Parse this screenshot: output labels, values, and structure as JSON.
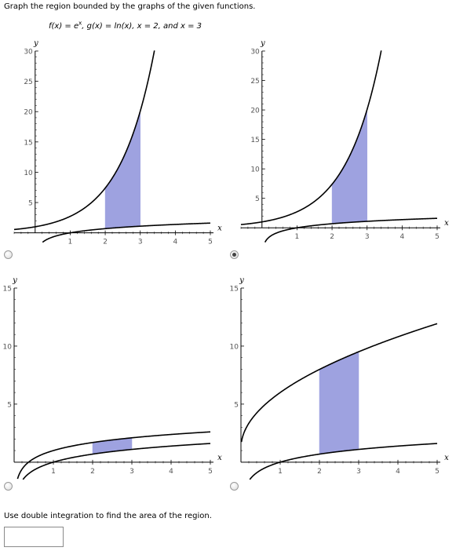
{
  "prompt": "Graph the region bounded by the graphs of the given functions.",
  "functions": {
    "f_label": "f(x) = e",
    "f_sup": "x",
    "rest": ", g(x) = ln(x), x = 2, and x = 3"
  },
  "instruction": "Use double integration to find the area of the region.",
  "answer": {
    "value": ""
  },
  "selected_option": 2,
  "colors": {
    "region": "#9ea2e0",
    "curve": "#000000"
  },
  "chart_data": [
    {
      "type": "line",
      "option": 1,
      "xlabel": "x",
      "ylabel": "y",
      "xlim": [
        -0.6,
        5
      ],
      "ylim": [
        -1.6,
        30
      ],
      "xticks": [
        1,
        2,
        3,
        4,
        5
      ],
      "yticks": [
        5,
        10,
        15,
        20,
        25,
        30
      ],
      "curves": [
        "exp",
        "ln"
      ],
      "region": {
        "x": [
          2,
          3
        ],
        "lower": "ln",
        "upper": "exp"
      }
    },
    {
      "type": "line",
      "option": 2,
      "xlabel": "x",
      "ylabel": "y",
      "xlim": [
        -0.6,
        5
      ],
      "ylim": [
        -2.5,
        30
      ],
      "xticks": [
        1,
        2,
        3,
        4,
        5
      ],
      "yticks": [
        5,
        10,
        15,
        20,
        25,
        30
      ],
      "curves": [
        "exp",
        "ln"
      ],
      "region": {
        "x": [
          2,
          3
        ],
        "lower": "ln",
        "upper": "exp"
      }
    },
    {
      "type": "line",
      "option": 3,
      "xlabel": "x",
      "ylabel": "y",
      "xlim": [
        0,
        5
      ],
      "ylim": [
        -1.5,
        15
      ],
      "xticks": [
        1,
        2,
        3,
        4,
        5
      ],
      "yticks": [
        5,
        10,
        15
      ],
      "curves": [
        "ln+1",
        "ln"
      ],
      "region": {
        "x": [
          2,
          3
        ],
        "lower": "ln",
        "upper": "ln+1"
      }
    },
    {
      "type": "line",
      "option": 4,
      "xlabel": "x",
      "ylabel": "y",
      "xlim": [
        0,
        5
      ],
      "ylim": [
        -1.5,
        15
      ],
      "xticks": [
        1,
        2,
        3,
        4,
        5
      ],
      "yticks": [
        5,
        10,
        15
      ],
      "curves": [
        "sqrt",
        "ln"
      ],
      "region": {
        "x": [
          2,
          3
        ],
        "lower": "ln",
        "upper": "sqrt"
      }
    }
  ]
}
